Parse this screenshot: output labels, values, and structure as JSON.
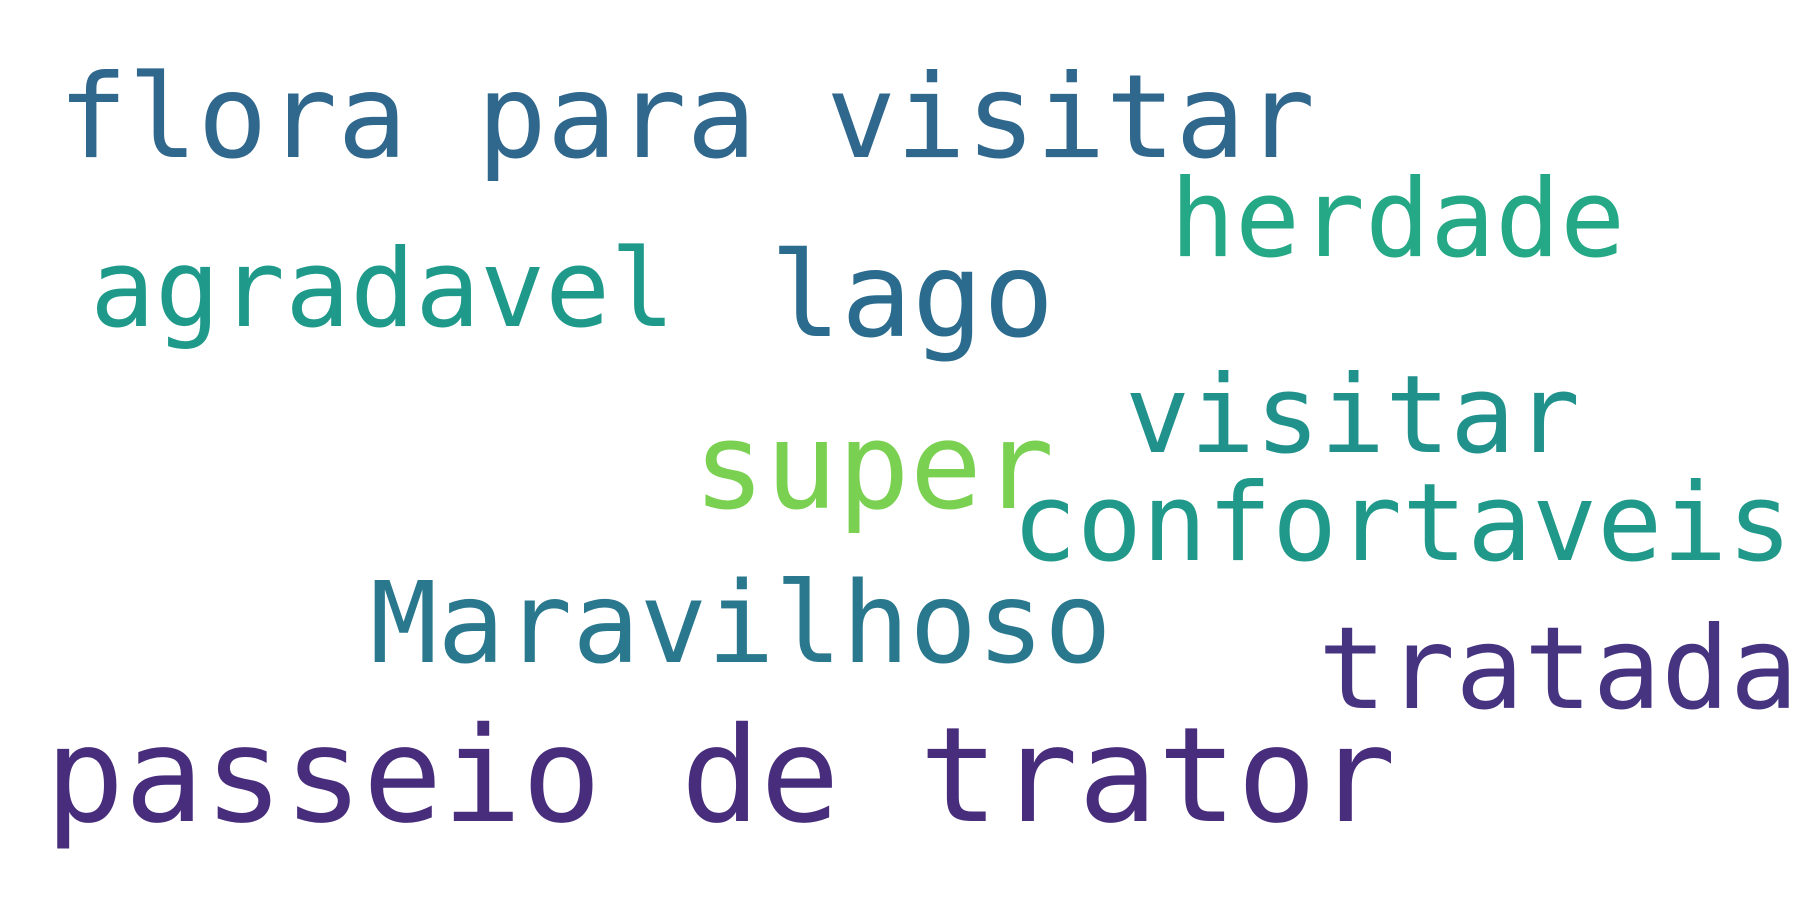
{
  "words": [
    {
      "text": "flora para visitar",
      "color": "#30678d"
    },
    {
      "text": "herdade",
      "color": "#24a885"
    },
    {
      "text": "agradavel",
      "color": "#1f9a8a"
    },
    {
      "text": "lago",
      "color": "#2b6c8e"
    },
    {
      "text": "visitar",
      "color": "#21918c"
    },
    {
      "text": "super",
      "color": "#7ad151"
    },
    {
      "text": "confortaveis",
      "color": "#21998a"
    },
    {
      "text": "Maravilhoso",
      "color": "#2a788e"
    },
    {
      "text": "tratada",
      "color": "#463480"
    },
    {
      "text": "passeio de trator",
      "color": "#472d7b"
    }
  ]
}
